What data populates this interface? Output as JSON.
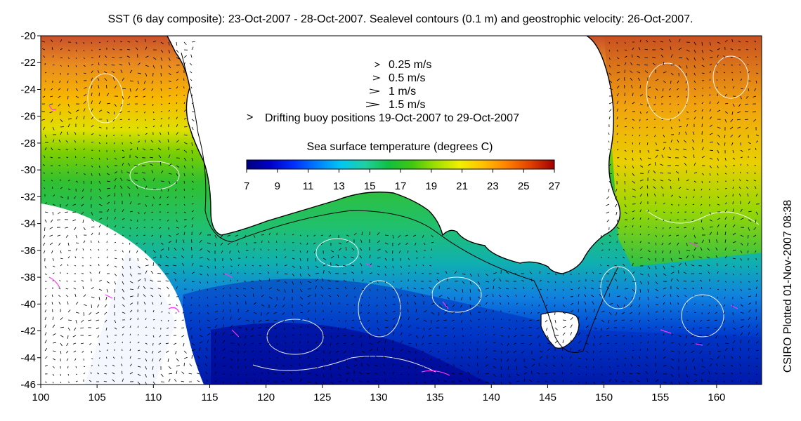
{
  "title": "SST (6 day composite): 23-Oct-2007 - 28-Oct-2007. Sealevel contours (0.1 m) and geostrophic velocity: 26-Oct-2007.",
  "credit": "CSIRO Plotted 01-Nov-2007 08:38",
  "axes": {
    "x": {
      "min": 100,
      "max": 164,
      "ticks": [
        "100",
        "105",
        "110",
        "115",
        "120",
        "125",
        "130",
        "135",
        "140",
        "145",
        "150",
        "155",
        "160"
      ]
    },
    "y": {
      "min": -46,
      "max": -20,
      "ticks": [
        "-20",
        "-22",
        "-24",
        "-26",
        "-28",
        "-30",
        "-32",
        "-34",
        "-36",
        "-38",
        "-40",
        "-42",
        "-44",
        "-46"
      ]
    }
  },
  "velocity_legend": [
    {
      "label": "0.25 m/s",
      "speed": 0.25
    },
    {
      "label": "0.5 m/s",
      "speed": 0.5
    },
    {
      "label": "1 m/s",
      "speed": 1
    },
    {
      "label": "1.5 m/s",
      "speed": 1.5
    }
  ],
  "buoy_legend": {
    "label": "Drifting buoy positions 19-Oct-2007 to 29-Oct-2007",
    "color": "#ff33ff"
  },
  "colorbar": {
    "title": "Sea surface temperature (degrees C)",
    "min": 7,
    "max": 27,
    "ticks": [
      "7",
      "9",
      "11",
      "13",
      "15",
      "17",
      "19",
      "21",
      "23",
      "25",
      "27"
    ],
    "colors": [
      "#00007f",
      "#0000c8",
      "#0030ff",
      "#0080ff",
      "#00c8f0",
      "#20d0a0",
      "#10c040",
      "#40c810",
      "#a0e000",
      "#f0f000",
      "#ffc000",
      "#ff8000",
      "#e04000",
      "#a00000"
    ]
  },
  "colors": {
    "land": "#ffffff",
    "coastline": "#000000",
    "contours": "#ffffff",
    "no_data": "#ffffff"
  }
}
